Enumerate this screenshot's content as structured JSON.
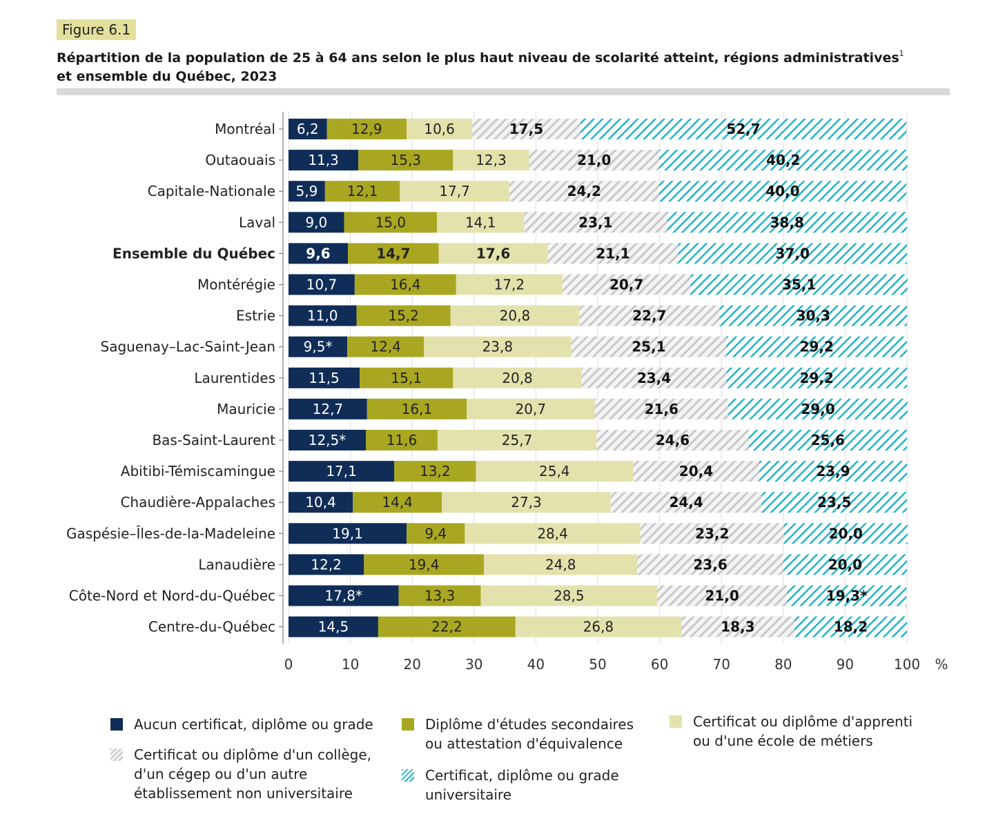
{
  "figure_label": "Figure 6.1",
  "title": {
    "text": "Répartition de la population de 25 à 64 ans selon le plus haut niveau de scolarité atteint, régions administratives",
    "superscript": "1",
    "text_line2": "et ensemble du Québec, 2023"
  },
  "unit_label": "%",
  "legend": [
    {
      "key": "none",
      "label": "Aucun certificat, diplôme ou grade"
    },
    {
      "key": "secondary",
      "label": "Diplôme d'études secondaires\nou attestation d'équivalence"
    },
    {
      "key": "apprentice",
      "label": "Certificat ou diplôme d'apprenti\nou d'une école de métiers"
    },
    {
      "key": "college",
      "label": "Certificat ou diplôme d'un collège,\nd'un cégep ou d'un autre\nétablissement non universitaire"
    },
    {
      "key": "university",
      "label": "Certificat, diplôme ou grade\nuniversitaire"
    }
  ],
  "colors": {
    "none": "#0f2d57",
    "secondary": "#a9a721",
    "apprentice": "#e3e2ad",
    "college_stripe": "#c8c8c8",
    "university_stripe": "#20b4c4"
  },
  "chart_data": {
    "type": "bar",
    "orientation": "horizontal",
    "stacked": true,
    "xlim": [
      0,
      100
    ],
    "xticks": [
      "0",
      "10",
      "20",
      "30",
      "40",
      "50",
      "60",
      "70",
      "80",
      "90",
      "100"
    ],
    "grid": true,
    "legend_position": "bottom",
    "highlight_category": "Ensemble du Québec",
    "categories": [
      "Montréal",
      "Outaouais",
      "Capitale-Nationale",
      "Laval",
      "Ensemble du Québec",
      "Montérégie",
      "Estrie",
      "Saguenay–Lac-Saint-Jean",
      "Laurentides",
      "Mauricie",
      "Bas-Saint-Laurent",
      "Abitibi-Témiscamingue",
      "Chaudière-Appalaches",
      "Gaspésie–Îles-de-la-Madeleine",
      "Lanaudière",
      "Côte-Nord et Nord-du-Québec",
      "Centre-du-Québec"
    ],
    "series": [
      {
        "name": "Aucun certificat, diplôme ou grade",
        "values": [
          6.2,
          11.3,
          5.9,
          9.0,
          9.6,
          10.7,
          11.0,
          9.5,
          11.5,
          12.7,
          12.5,
          17.1,
          10.4,
          19.1,
          12.2,
          17.8,
          14.5
        ],
        "labels": [
          "6,2",
          "11,3",
          "5,9",
          "9,0",
          "9,6",
          "10,7",
          "11,0",
          "9,5*",
          "11,5",
          "12,7",
          "12,5*",
          "17,1",
          "10,4",
          "19,1",
          "12,2",
          "17,8*",
          "14,5"
        ]
      },
      {
        "name": "Diplôme d'études secondaires ou attestation d'équivalence",
        "values": [
          12.9,
          15.3,
          12.1,
          15.0,
          14.7,
          16.4,
          15.2,
          12.4,
          15.1,
          16.1,
          11.6,
          13.2,
          14.4,
          9.4,
          19.4,
          13.3,
          22.2
        ],
        "labels": [
          "12,9",
          "15,3",
          "12,1",
          "15,0",
          "14,7",
          "16,4",
          "15,2",
          "12,4",
          "15,1",
          "16,1",
          "11,6",
          "13,2",
          "14,4",
          "9,4",
          "19,4",
          "13,3",
          "22,2"
        ]
      },
      {
        "name": "Certificat ou diplôme d'apprenti ou d'une école de métiers",
        "values": [
          10.6,
          12.3,
          17.7,
          14.1,
          17.6,
          17.2,
          20.8,
          23.8,
          20.8,
          20.7,
          25.7,
          25.4,
          27.3,
          28.4,
          24.8,
          28.5,
          26.8
        ],
        "labels": [
          "10,6",
          "12,3",
          "17,7",
          "14,1",
          "17,6",
          "17,2",
          "20,8",
          "23,8",
          "20,8",
          "20,7",
          "25,7",
          "25,4",
          "27,3",
          "28,4",
          "24,8",
          "28,5",
          "26,8"
        ]
      },
      {
        "name": "Certificat ou diplôme d'un collège, d'un cégep ou d'un autre établissement non universitaire",
        "values": [
          17.5,
          21.0,
          24.2,
          23.1,
          21.1,
          20.7,
          22.7,
          25.1,
          23.4,
          21.6,
          24.6,
          20.4,
          24.4,
          23.2,
          23.6,
          21.0,
          18.3
        ],
        "labels": [
          "17,5",
          "21,0",
          "24,2",
          "23,1",
          "21,1",
          "20,7",
          "22,7",
          "25,1",
          "23,4",
          "21,6",
          "24,6",
          "20,4",
          "24,4",
          "23,2",
          "23,6",
          "21,0",
          "18,3"
        ]
      },
      {
        "name": "Certificat, diplôme ou grade universitaire",
        "values": [
          52.7,
          40.2,
          40.0,
          38.8,
          37.0,
          35.1,
          30.3,
          29.2,
          29.2,
          29.0,
          25.6,
          23.9,
          23.5,
          20.0,
          20.0,
          19.3,
          18.2
        ],
        "labels": [
          "52,7",
          "40,2",
          "40,0",
          "38,8",
          "37,0",
          "35,1",
          "30,3",
          "29,2",
          "29,2",
          "29,0",
          "25,6",
          "23,9",
          "23,5",
          "20,0",
          "20,0",
          "19,3*",
          "18,2"
        ]
      }
    ]
  }
}
